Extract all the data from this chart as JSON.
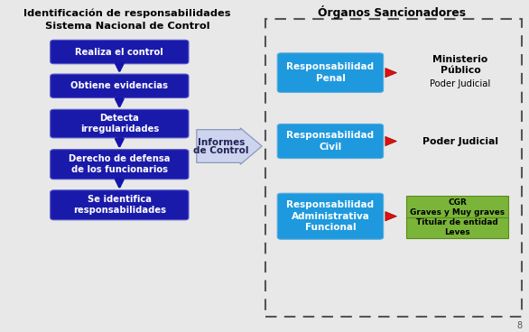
{
  "title_left_line1": "Identificación de responsabilidades",
  "title_left_line2": "Sistema Nacional de Control",
  "title_right": "Órganos Sancionadores",
  "figure_bg": "#e8e8e8",
  "left_boxes": [
    "Realiza el control",
    "Obtiene evidencias",
    "Detecta\nirregularidades",
    "Derecho de defensa\nde los funcionarios",
    "Se identifica\nresponsabilidades"
  ],
  "left_box_color": "#1a1aaa",
  "left_box_text_color": "#ffffff",
  "arrow_label_line1": "Informes",
  "arrow_label_line2": "de Control",
  "right_boxes": [
    "Responsabilidad\nPenal",
    "Responsabilidad\nCivil",
    "Responsabilidad\nAdministrativa\nFuncional"
  ],
  "right_box_color": "#1e99dd",
  "right_box_text_color": "#ffffff",
  "label_1a": "Ministerio",
  "label_1b": "Público",
  "label_1c": "Poder Judicial",
  "label_2": "Poder Judicial",
  "green_box_top_line1": "CGR",
  "green_box_top_line2": "Graves y Muy graves",
  "green_box_bot_line1": "Titular de entidad",
  "green_box_bot_line2": "Leves",
  "green_color_top": "#7ab53a",
  "green_color_bot": "#7ab53a",
  "green_border": "#5a8a1a",
  "dashed_border_color": "#555555",
  "caption": "8"
}
